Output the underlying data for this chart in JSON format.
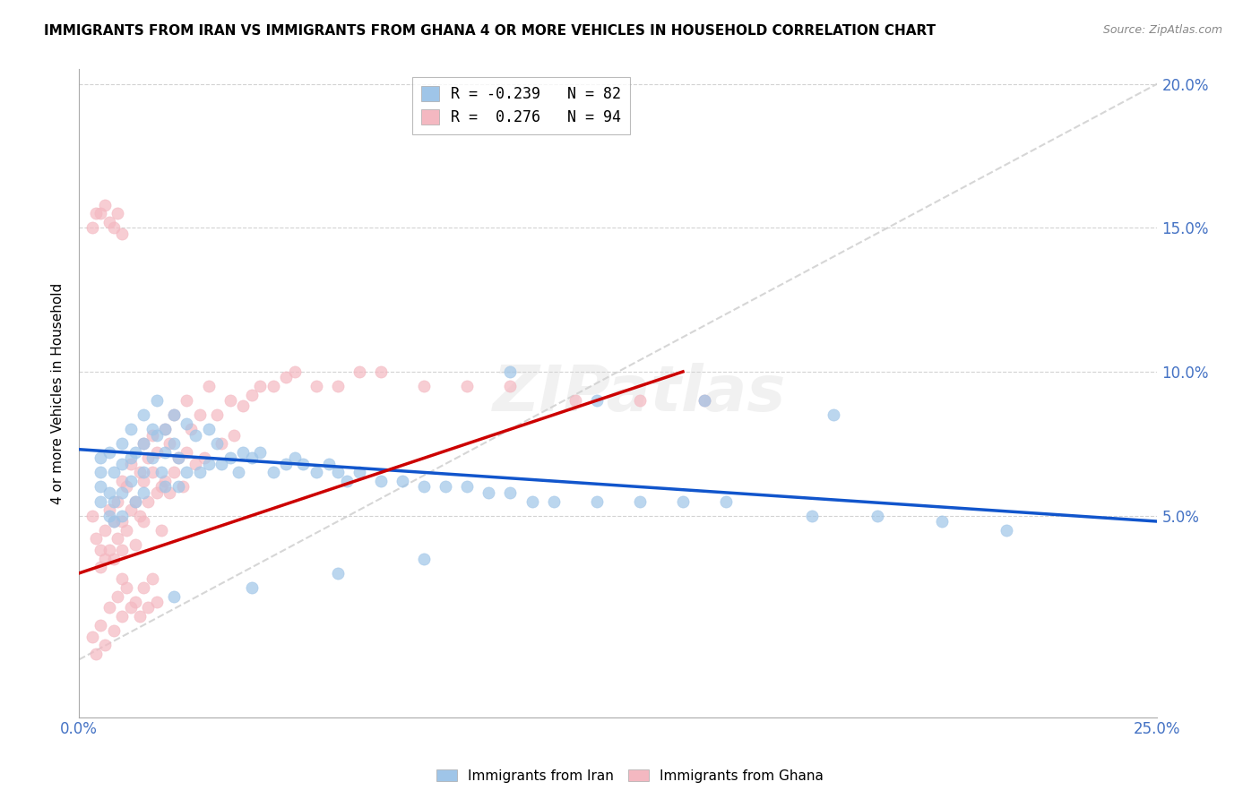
{
  "title": "IMMIGRANTS FROM IRAN VS IMMIGRANTS FROM GHANA 4 OR MORE VEHICLES IN HOUSEHOLD CORRELATION CHART",
  "source": "Source: ZipAtlas.com",
  "ylabel": "4 or more Vehicles in Household",
  "legend_iran": {
    "R": -0.239,
    "N": 82,
    "label": "Immigrants from Iran"
  },
  "legend_ghana": {
    "R": 0.276,
    "N": 94,
    "label": "Immigrants from Ghana"
  },
  "color_iran": "#9fc5e8",
  "color_ghana": "#f4b8c1",
  "color_iran_line": "#1155cc",
  "color_ghana_line": "#cc0000",
  "watermark_text": "ZIPatlas",
  "xlim": [
    0.0,
    0.25
  ],
  "ylim": [
    -0.02,
    0.205
  ],
  "iran_scatter_x": [
    0.005,
    0.005,
    0.005,
    0.005,
    0.007,
    0.007,
    0.007,
    0.008,
    0.008,
    0.008,
    0.01,
    0.01,
    0.01,
    0.01,
    0.012,
    0.012,
    0.012,
    0.013,
    0.013,
    0.015,
    0.015,
    0.015,
    0.015,
    0.017,
    0.017,
    0.018,
    0.018,
    0.019,
    0.02,
    0.02,
    0.02,
    0.022,
    0.022,
    0.023,
    0.023,
    0.025,
    0.025,
    0.027,
    0.028,
    0.03,
    0.03,
    0.032,
    0.033,
    0.035,
    0.037,
    0.038,
    0.04,
    0.042,
    0.045,
    0.048,
    0.05,
    0.052,
    0.055,
    0.058,
    0.06,
    0.062,
    0.065,
    0.07,
    0.075,
    0.08,
    0.085,
    0.09,
    0.095,
    0.1,
    0.105,
    0.11,
    0.12,
    0.13,
    0.14,
    0.15,
    0.17,
    0.185,
    0.2,
    0.215,
    0.1,
    0.12,
    0.145,
    0.175,
    0.08,
    0.06,
    0.04,
    0.022
  ],
  "iran_scatter_y": [
    0.065,
    0.055,
    0.07,
    0.06,
    0.072,
    0.058,
    0.05,
    0.065,
    0.055,
    0.048,
    0.075,
    0.068,
    0.058,
    0.05,
    0.08,
    0.07,
    0.062,
    0.055,
    0.072,
    0.085,
    0.075,
    0.065,
    0.058,
    0.08,
    0.07,
    0.09,
    0.078,
    0.065,
    0.08,
    0.072,
    0.06,
    0.085,
    0.075,
    0.07,
    0.06,
    0.082,
    0.065,
    0.078,
    0.065,
    0.08,
    0.068,
    0.075,
    0.068,
    0.07,
    0.065,
    0.072,
    0.07,
    0.072,
    0.065,
    0.068,
    0.07,
    0.068,
    0.065,
    0.068,
    0.065,
    0.062,
    0.065,
    0.062,
    0.062,
    0.06,
    0.06,
    0.06,
    0.058,
    0.058,
    0.055,
    0.055,
    0.055,
    0.055,
    0.055,
    0.055,
    0.05,
    0.05,
    0.048,
    0.045,
    0.1,
    0.09,
    0.09,
    0.085,
    0.035,
    0.03,
    0.025,
    0.022
  ],
  "ghana_scatter_x": [
    0.003,
    0.004,
    0.005,
    0.005,
    0.006,
    0.006,
    0.007,
    0.007,
    0.008,
    0.008,
    0.009,
    0.009,
    0.01,
    0.01,
    0.01,
    0.01,
    0.011,
    0.011,
    0.012,
    0.012,
    0.013,
    0.013,
    0.014,
    0.014,
    0.015,
    0.015,
    0.015,
    0.016,
    0.016,
    0.017,
    0.017,
    0.018,
    0.018,
    0.019,
    0.019,
    0.02,
    0.02,
    0.021,
    0.021,
    0.022,
    0.022,
    0.023,
    0.024,
    0.025,
    0.025,
    0.026,
    0.027,
    0.028,
    0.029,
    0.03,
    0.032,
    0.033,
    0.035,
    0.036,
    0.038,
    0.04,
    0.042,
    0.045,
    0.048,
    0.05,
    0.055,
    0.06,
    0.065,
    0.07,
    0.08,
    0.09,
    0.1,
    0.115,
    0.13,
    0.145,
    0.003,
    0.004,
    0.005,
    0.006,
    0.007,
    0.008,
    0.009,
    0.01,
    0.011,
    0.012,
    0.013,
    0.014,
    0.015,
    0.016,
    0.017,
    0.018,
    0.003,
    0.004,
    0.005,
    0.006,
    0.007,
    0.008,
    0.009,
    0.01
  ],
  "ghana_scatter_y": [
    0.05,
    0.042,
    0.038,
    0.032,
    0.045,
    0.035,
    0.052,
    0.038,
    0.048,
    0.035,
    0.055,
    0.042,
    0.062,
    0.048,
    0.038,
    0.028,
    0.06,
    0.045,
    0.068,
    0.052,
    0.055,
    0.04,
    0.065,
    0.05,
    0.075,
    0.062,
    0.048,
    0.07,
    0.055,
    0.078,
    0.065,
    0.058,
    0.072,
    0.06,
    0.045,
    0.08,
    0.062,
    0.075,
    0.058,
    0.085,
    0.065,
    0.07,
    0.06,
    0.09,
    0.072,
    0.08,
    0.068,
    0.085,
    0.07,
    0.095,
    0.085,
    0.075,
    0.09,
    0.078,
    0.088,
    0.092,
    0.095,
    0.095,
    0.098,
    0.1,
    0.095,
    0.095,
    0.1,
    0.1,
    0.095,
    0.095,
    0.095,
    0.09,
    0.09,
    0.09,
    0.008,
    0.002,
    0.012,
    0.005,
    0.018,
    0.01,
    0.022,
    0.015,
    0.025,
    0.018,
    0.02,
    0.015,
    0.025,
    0.018,
    0.028,
    0.02,
    0.15,
    0.155,
    0.155,
    0.158,
    0.152,
    0.15,
    0.155,
    0.148
  ]
}
